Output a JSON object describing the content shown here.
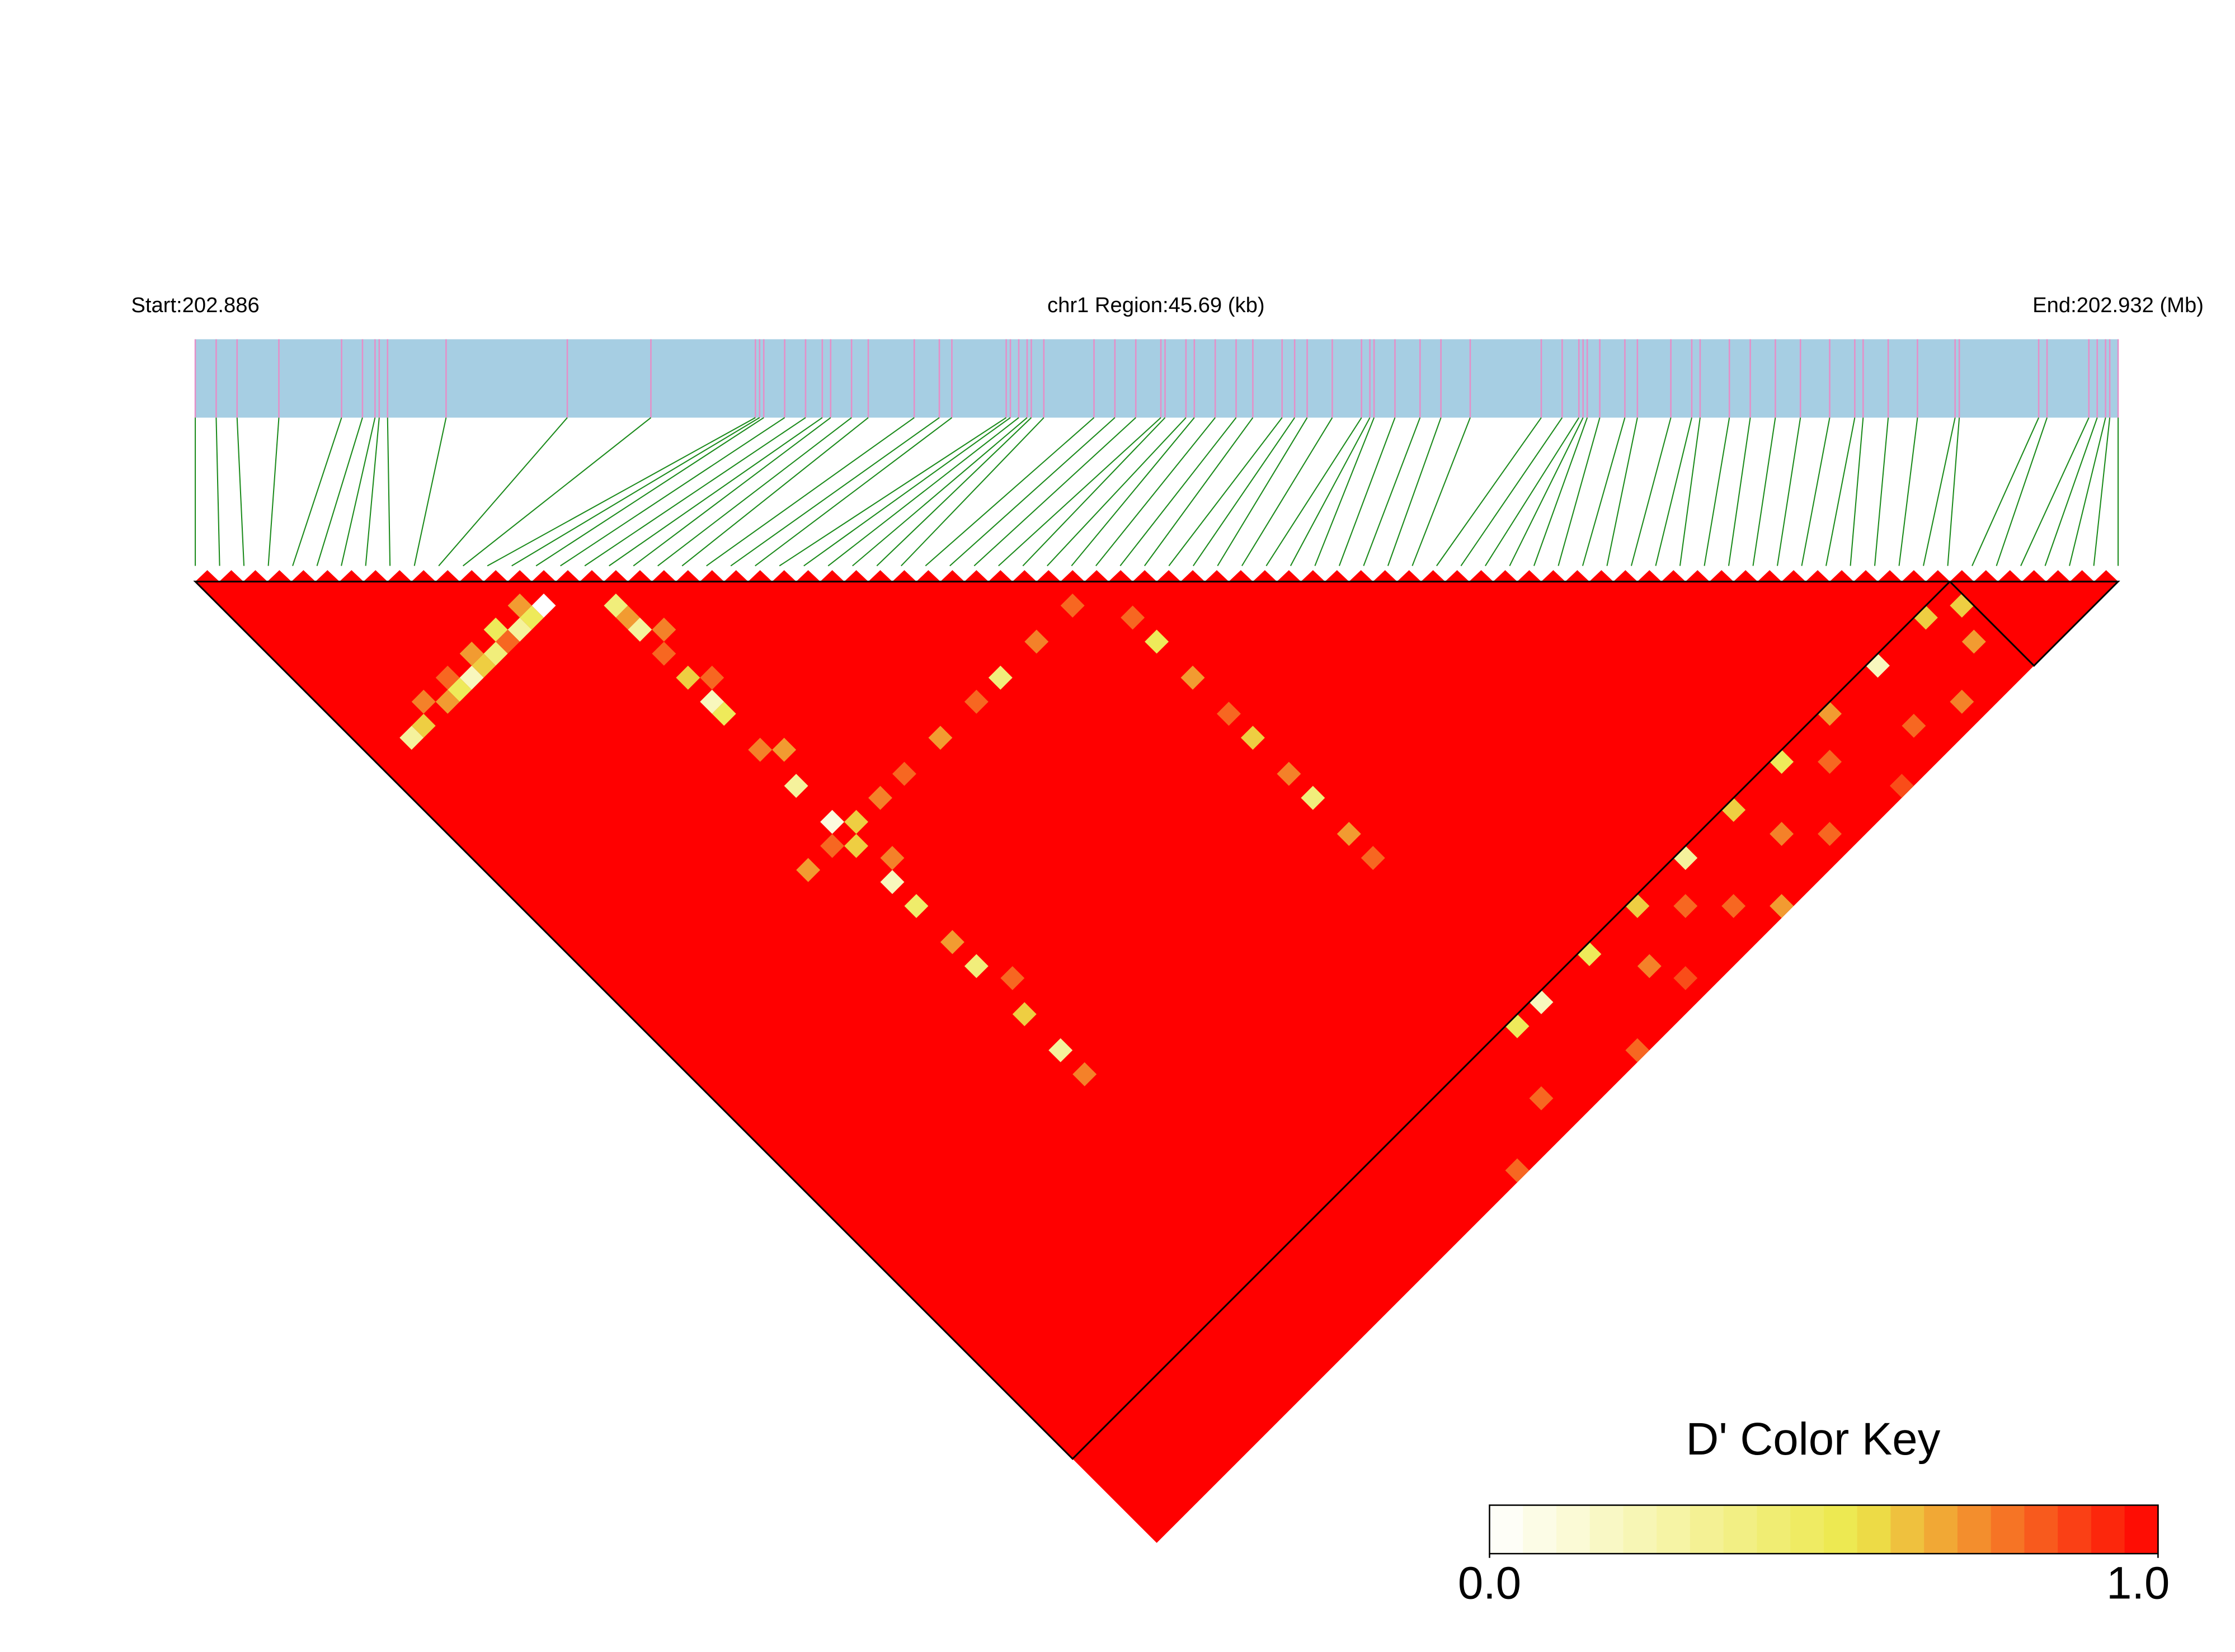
{
  "chart_data": {
    "type": "ld-heatmap",
    "start_label": "Start:202.886",
    "region_label": "chr1 Region:45.69 (kb)",
    "end_label": "End:202.932 (Mb)",
    "xlim": [
      202.886,
      202.932
    ],
    "snp_positions": [
      202.886,
      202.8865,
      202.887,
      202.888,
      202.8895,
      202.89,
      202.8903,
      202.8904,
      202.8906,
      202.892,
      202.8949,
      202.8969,
      202.8994,
      202.8995,
      202.8996,
      202.9001,
      202.9006,
      202.901,
      202.9012,
      202.9017,
      202.9021,
      202.9032,
      202.9038,
      202.9041,
      202.9054,
      202.9055,
      202.9057,
      202.9059,
      202.906,
      202.9063,
      202.9075,
      202.908,
      202.9085,
      202.9091,
      202.9092,
      202.9097,
      202.9099,
      202.9104,
      202.9109,
      202.9113,
      202.912,
      202.9123,
      202.9126,
      202.9132,
      202.9139,
      202.9141,
      202.9142,
      202.9147,
      202.9153,
      202.9158,
      202.9165,
      202.9182,
      202.9187,
      202.9191,
      202.9192,
      202.9193,
      202.9196,
      202.9202,
      202.9205,
      202.9213,
      202.9218,
      202.922,
      202.9227,
      202.9232,
      202.9238,
      202.9244,
      202.9251,
      202.9257,
      202.9259,
      202.9265,
      202.9272,
      202.9281,
      202.9282,
      202.9301,
      202.9303,
      202.9313,
      202.9315,
      202.9317,
      202.9318,
      202.932
    ],
    "ld_color": "#ff0000",
    "ld_blocks": [
      [
        0,
        72
      ],
      [
        73,
        79
      ]
    ],
    "cells": [
      [
        13,
        15,
        0.0
      ],
      [
        12,
        15,
        0.5
      ],
      [
        11,
        15,
        0.3
      ],
      [
        10,
        15,
        0.8
      ],
      [
        9,
        15,
        0.4
      ],
      [
        8,
        15,
        0.6
      ],
      [
        7,
        15,
        0.2
      ],
      [
        6,
        15,
        0.5
      ],
      [
        5,
        15,
        0.7
      ],
      [
        3,
        15,
        0.6
      ],
      [
        2,
        15,
        0.3
      ],
      [
        12,
        14,
        0.7
      ],
      [
        10,
        14,
        0.5
      ],
      [
        8,
        14,
        0.7
      ],
      [
        6,
        14,
        0.8
      ],
      [
        4,
        14,
        0.75
      ],
      [
        16,
        18,
        0.4
      ],
      [
        16,
        19,
        0.7
      ],
      [
        16,
        20,
        0.3
      ],
      [
        16,
        22,
        0.8
      ],
      [
        16,
        24,
        0.6
      ],
      [
        16,
        26,
        0.2
      ],
      [
        16,
        27,
        0.5
      ],
      [
        16,
        30,
        0.75
      ],
      [
        16,
        33,
        0.3
      ],
      [
        16,
        36,
        0.1
      ],
      [
        16,
        38,
        0.6
      ],
      [
        16,
        41,
        0.2
      ],
      [
        16,
        43,
        0.45
      ],
      [
        16,
        46,
        0.7
      ],
      [
        16,
        48,
        0.4
      ],
      [
        16,
        52,
        0.6
      ],
      [
        16,
        55,
        0.3
      ],
      [
        16,
        57,
        0.75
      ],
      [
        17,
        21,
        0.75
      ],
      [
        17,
        25,
        0.8
      ],
      [
        17,
        31,
        0.7
      ],
      [
        17,
        40,
        0.75
      ],
      [
        17,
        50,
        0.8
      ],
      [
        37,
        40,
        0.8
      ],
      [
        37,
        42,
        0.5
      ],
      [
        37,
        45,
        0.7
      ],
      [
        37,
        48,
        0.8
      ],
      [
        37,
        50,
        0.6
      ],
      [
        37,
        53,
        0.75
      ],
      [
        37,
        55,
        0.4
      ],
      [
        37,
        58,
        0.7
      ],
      [
        37,
        60,
        0.8
      ],
      [
        35,
        37,
        0.8
      ],
      [
        32,
        37,
        0.75
      ],
      [
        29,
        37,
        0.4
      ],
      [
        27,
        37,
        0.8
      ],
      [
        24,
        37,
        0.7
      ],
      [
        21,
        37,
        0.8
      ],
      [
        19,
        37,
        0.75
      ],
      [
        17,
        37,
        0.6
      ],
      [
        15,
        37,
        0.8
      ],
      [
        13,
        37,
        0.7
      ],
      [
        70,
        73,
        0.6
      ],
      [
        66,
        73,
        0.2
      ],
      [
        62,
        73,
        0.7
      ],
      [
        58,
        73,
        0.5
      ],
      [
        54,
        73,
        0.6
      ],
      [
        50,
        73,
        0.3
      ],
      [
        46,
        73,
        0.6
      ],
      [
        42,
        73,
        0.5
      ],
      [
        38,
        73,
        0.2
      ],
      [
        36,
        73,
        0.5
      ],
      [
        60,
        75,
        0.8
      ],
      [
        55,
        76,
        0.75
      ],
      [
        50,
        77,
        0.8
      ],
      [
        45,
        78,
        0.85
      ],
      [
        40,
        79,
        0.8
      ],
      [
        65,
        77,
        0.8
      ],
      [
        68,
        78,
        0.75
      ],
      [
        52,
        79,
        0.7
      ],
      [
        57,
        78,
        0.8
      ],
      [
        48,
        75,
        0.8
      ],
      [
        44,
        76,
        0.75
      ],
      [
        62,
        79,
        0.85
      ],
      [
        71,
        76,
        0.7
      ],
      [
        34,
        77,
        0.8
      ],
      [
        30,
        79,
        0.8
      ],
      [
        72,
        74,
        0.6
      ]
    ],
    "key_title": "D' Color Key",
    "color_stops": [
      {
        "value": 0,
        "color": "#ffffff"
      },
      {
        "value": 0.55,
        "color": "#ece84a"
      },
      {
        "value": 1,
        "color": "#ff0000"
      }
    ],
    "key_ticks": [
      {
        "value": 0,
        "label": "0.0"
      },
      {
        "value": 1,
        "label": "1.0"
      }
    ]
  }
}
